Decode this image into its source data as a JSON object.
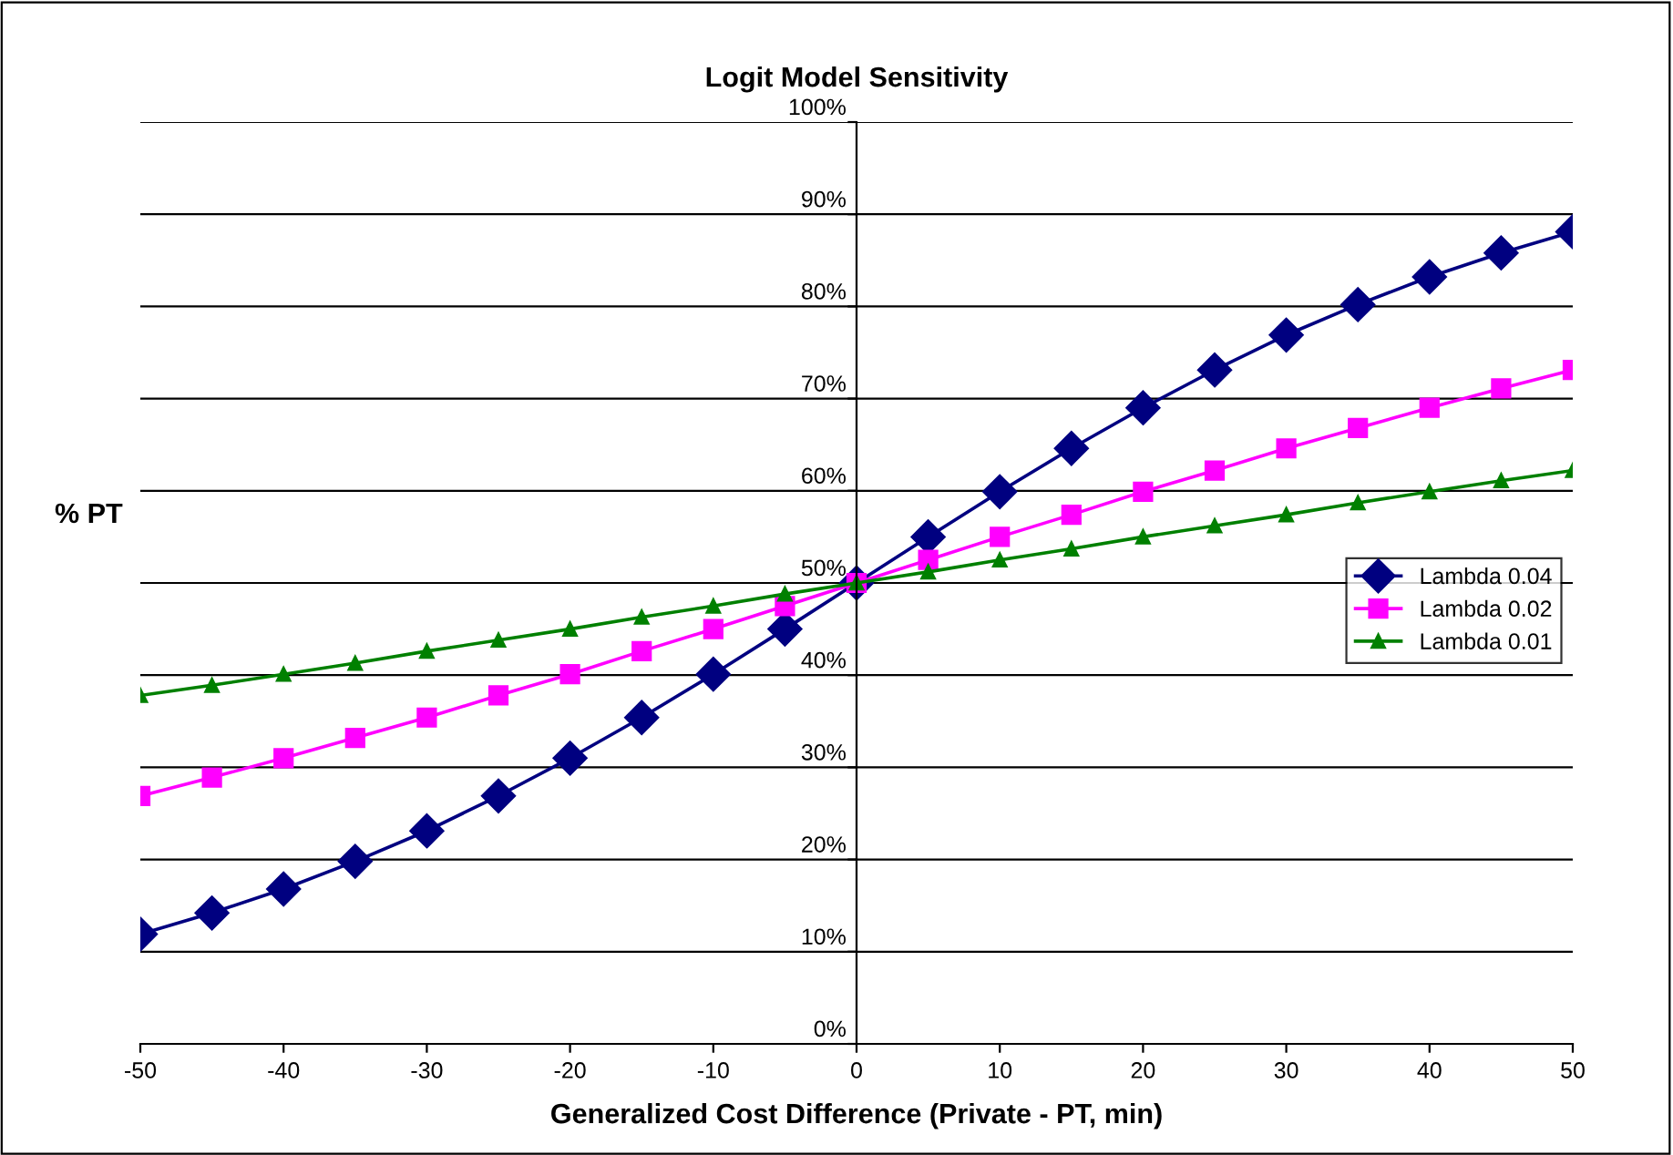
{
  "chart_data": {
    "type": "line",
    "title": "Logit Model Sensitivity",
    "xlabel": "Generalized Cost Difference (Private - PT, min)",
    "ylabel": "% PT",
    "x": [
      -50,
      -45,
      -40,
      -35,
      -30,
      -25,
      -20,
      -15,
      -10,
      -5,
      0,
      5,
      10,
      15,
      20,
      25,
      30,
      35,
      40,
      45,
      50
    ],
    "series": [
      {
        "name": "Lambda 0.04",
        "color": "#000080",
        "marker": "diamond",
        "values": [
          11.9,
          14.2,
          16.8,
          19.8,
          23.1,
          26.9,
          31.0,
          35.4,
          40.1,
          45.0,
          50,
          55.0,
          59.9,
          64.6,
          69.0,
          73.1,
          76.9,
          80.2,
          83.2,
          85.8,
          88.1
        ]
      },
      {
        "name": "Lambda 0.02",
        "color": "#ff00ff",
        "marker": "square",
        "values": [
          26.9,
          28.9,
          31.0,
          33.2,
          35.4,
          37.8,
          40.1,
          42.6,
          45.0,
          47.5,
          50,
          52.5,
          55.0,
          57.4,
          59.9,
          62.2,
          64.6,
          66.8,
          69.0,
          71.1,
          73.1
        ]
      },
      {
        "name": "Lambda 0.01",
        "color": "#008000",
        "marker": "triangle",
        "values": [
          37.8,
          38.9,
          40.1,
          41.3,
          42.6,
          43.8,
          45.0,
          46.3,
          47.5,
          48.8,
          50,
          51.2,
          52.5,
          53.7,
          55.0,
          56.2,
          57.4,
          58.7,
          59.9,
          61.1,
          62.2
        ]
      }
    ],
    "xlim": [
      -50,
      50
    ],
    "xticks": [
      -50,
      -40,
      -30,
      -20,
      -10,
      0,
      10,
      20,
      30,
      40,
      50
    ],
    "ylim": [
      0,
      100
    ],
    "yticks": [
      {
        "value": 0,
        "label": "0%"
      },
      {
        "value": 10,
        "label": "10%"
      },
      {
        "value": 20,
        "label": "20%"
      },
      {
        "value": 30,
        "label": "30%"
      },
      {
        "value": 40,
        "label": "40%"
      },
      {
        "value": 50,
        "label": "50%"
      },
      {
        "value": 60,
        "label": "60%"
      },
      {
        "value": 70,
        "label": "70%"
      },
      {
        "value": 80,
        "label": "80%"
      },
      {
        "value": 90,
        "label": "90%"
      },
      {
        "value": 100,
        "label": "100%"
      }
    ],
    "grid": "y",
    "legend": "right",
    "line_style": "solid"
  }
}
